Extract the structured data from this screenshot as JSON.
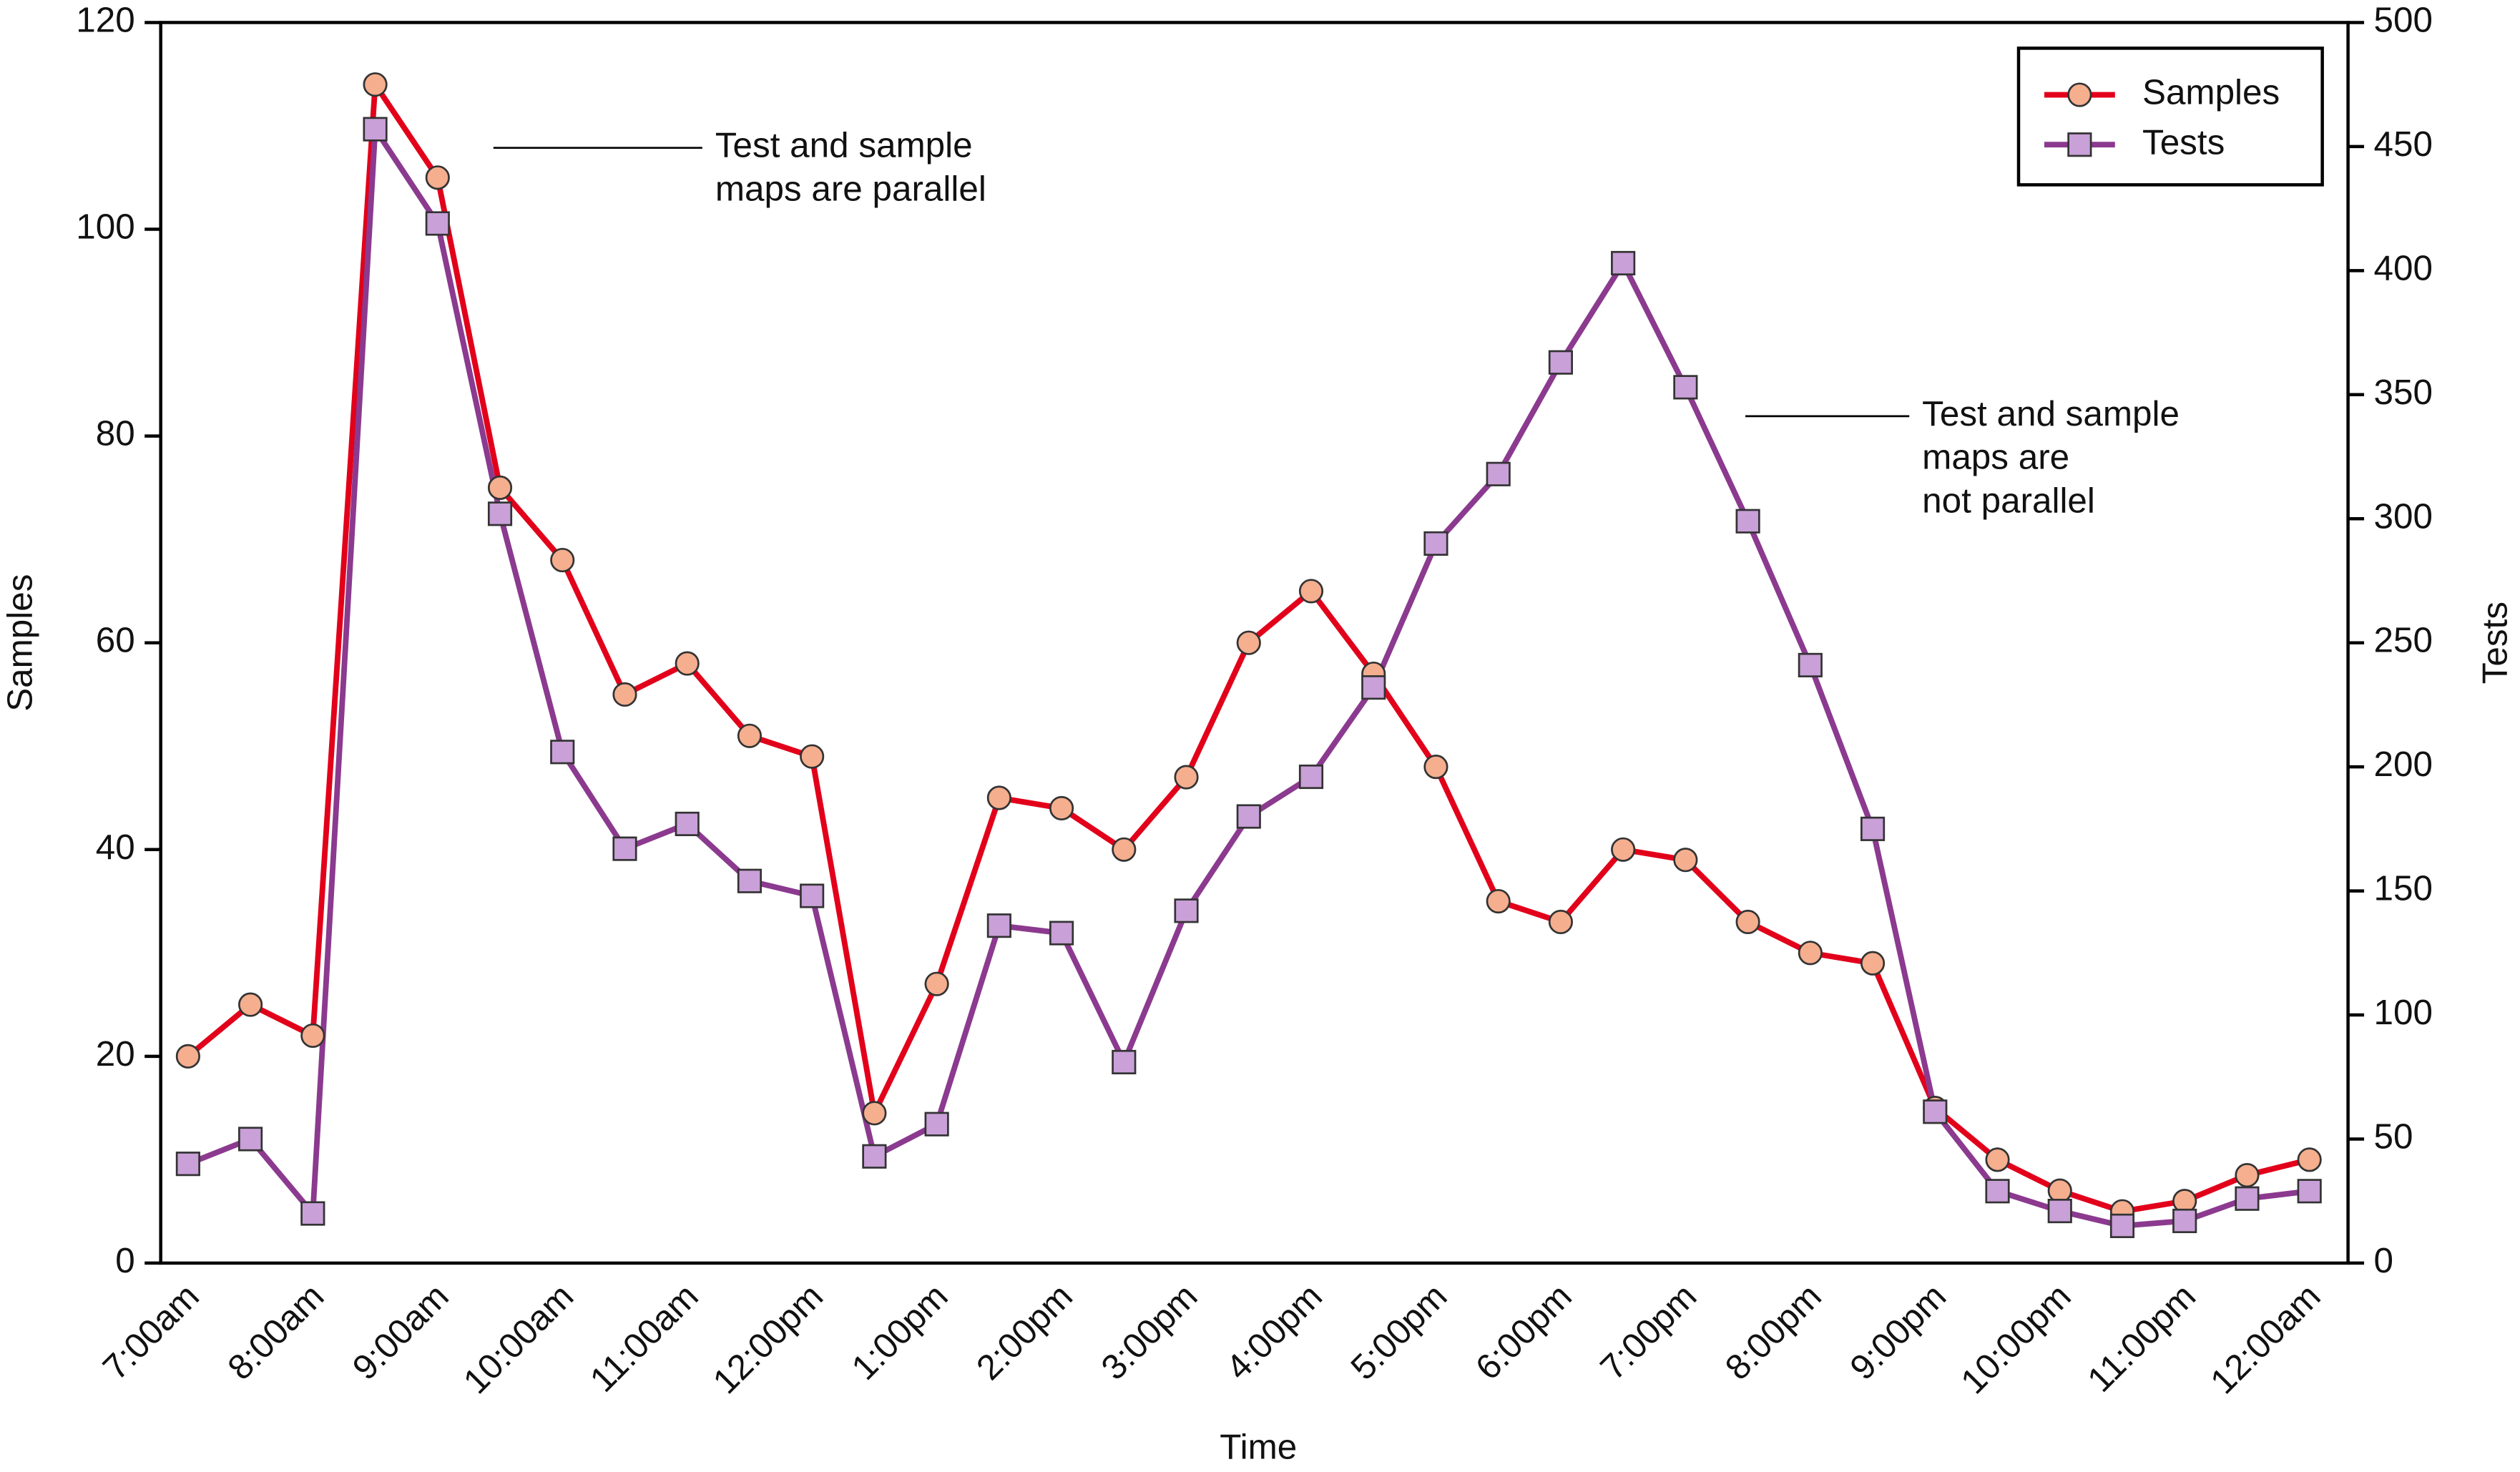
{
  "chart_data": {
    "type": "line",
    "x_label": "Time",
    "y_label": "Samples",
    "y2_label": "Tests",
    "categories": [
      "7:00am",
      null,
      "8:00am",
      null,
      "9:00am",
      null,
      "10:00am",
      null,
      "11:00am",
      null,
      "12:00pm",
      null,
      "1:00pm",
      null,
      "2:00pm",
      null,
      "3:00pm",
      null,
      "4:00pm",
      null,
      "5:00pm",
      null,
      "6:00pm",
      null,
      "7:00pm",
      null,
      "8:00pm",
      null,
      "9:00pm",
      null,
      "10:00pm",
      null,
      "11:00pm",
      null,
      "12:00am"
    ],
    "series": [
      {
        "name": "Samples",
        "color": "#e2001a",
        "marker": "circle",
        "marker_color": "#f5ae8e",
        "values": [
          20,
          25,
          22,
          114,
          105,
          75,
          68,
          55,
          58,
          51,
          49,
          14.5,
          27,
          45,
          44,
          40,
          47,
          60,
          65,
          57,
          48,
          35,
          33,
          40,
          39,
          33,
          30,
          29,
          15,
          10,
          7,
          5,
          6,
          8.5,
          10
        ]
      },
      {
        "name": "Tests",
        "color": "#8b3a8f",
        "marker": "square",
        "marker_color": "#c9a0d8",
        "axis": "y2",
        "values": [
          40,
          50,
          20,
          457,
          419,
          302,
          206,
          167,
          177,
          154,
          148,
          43,
          56,
          136,
          133,
          81,
          142,
          180,
          196,
          232,
          290,
          318,
          363,
          403,
          353,
          299,
          241,
          175,
          61,
          29,
          21,
          15,
          17,
          26,
          29
        ]
      }
    ],
    "ylim": [
      0,
      120
    ],
    "yticks": [
      0,
      20,
      40,
      60,
      80,
      100,
      120
    ],
    "y2lim": [
      0,
      500
    ],
    "y2ticks": [
      0,
      50,
      100,
      150,
      200,
      250,
      300,
      350,
      400,
      450,
      500
    ],
    "legend": "top-right",
    "annotations": [
      {
        "lines": [
          "Test and sample",
          "maps are parallel"
        ]
      },
      {
        "lines": [
          "Test and sample",
          "maps are",
          "not parallel"
        ]
      }
    ]
  }
}
